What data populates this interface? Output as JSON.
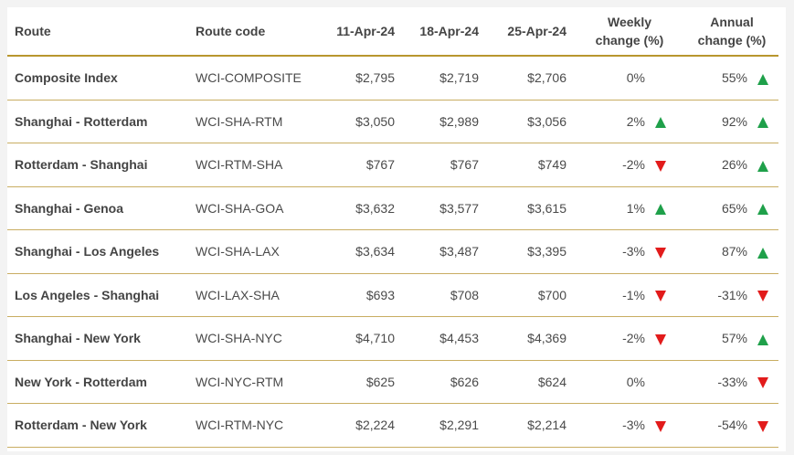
{
  "table": {
    "header": [
      "Route",
      "Route code",
      "11-Apr-24",
      "18-Apr-24",
      "25-Apr-24",
      "Weekly change (%)",
      "Annual change (%)"
    ],
    "rows": [
      [
        "Composite Index",
        "WCI-COMPOSITE",
        "$2,795",
        "$2,719",
        "$2,706",
        "0%",
        "55%"
      ],
      [
        "Shanghai - Rotterdam",
        "WCI-SHA-RTM",
        "$3,050",
        "$2,989",
        "$3,056",
        "2%",
        "92%"
      ],
      [
        "Rotterdam - Shanghai",
        "WCI-RTM-SHA",
        "$767",
        "$767",
        "$749",
        "-2%",
        "26%"
      ],
      [
        "Shanghai - Genoa",
        "WCI-SHA-GOA",
        "$3,632",
        "$3,577",
        "$3,615",
        "1%",
        "65%"
      ],
      [
        "Shanghai - Los Angeles",
        "WCI-SHA-LAX",
        "$3,634",
        "$3,487",
        "$3,395",
        "-3%",
        "87%"
      ],
      [
        "Los Angeles - Shanghai",
        "WCI-LAX-SHA",
        "$693",
        "$708",
        "$700",
        "-1%",
        "-31%"
      ],
      [
        "Shanghai - New York",
        "WCI-SHA-NYC",
        "$4,710",
        "$4,453",
        "$4,369",
        "-2%",
        "57%"
      ],
      [
        "New York - Rotterdam",
        "WCI-NYC-RTM",
        "$625",
        "$626",
        "$624",
        "0%",
        "-33%"
      ],
      [
        "Rotterdam - New York",
        "WCI-RTM-NYC",
        "$2,224",
        "$2,291",
        "$2,214",
        "-3%",
        "-54%"
      ]
    ]
  }
}
